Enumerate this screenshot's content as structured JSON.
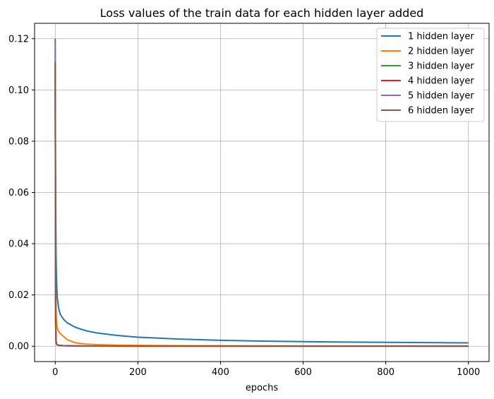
{
  "chart_data": {
    "type": "line",
    "title": "Loss values of the train data for each hidden layer added",
    "xlabel": "epochs",
    "ylabel": "",
    "xlim": [
      -50,
      1050
    ],
    "ylim": [
      -0.006,
      0.126
    ],
    "xticks": [
      0,
      200,
      400,
      600,
      800,
      1000
    ],
    "yticks": [
      0.0,
      0.02,
      0.04,
      0.06,
      0.08,
      0.1,
      0.12
    ],
    "ytick_labels": [
      "0.00",
      "0.02",
      "0.04",
      "0.06",
      "0.08",
      "0.10",
      "0.12"
    ],
    "grid": true,
    "legend_position": "top-right",
    "series": [
      {
        "name": "1 hidden layer",
        "color": "#1f77b4",
        "x": [
          0,
          1,
          2,
          3,
          5,
          8,
          12,
          20,
          30,
          50,
          75,
          100,
          150,
          200,
          300,
          400,
          500,
          600,
          700,
          800,
          900,
          1000
        ],
        "y": [
          0.105,
          0.06,
          0.035,
          0.026,
          0.019,
          0.015,
          0.0125,
          0.0105,
          0.009,
          0.0073,
          0.006,
          0.0052,
          0.0042,
          0.0035,
          0.0028,
          0.0023,
          0.002,
          0.0018,
          0.0016,
          0.0015,
          0.0014,
          0.0013
        ]
      },
      {
        "name": "2 hidden layer",
        "color": "#ff7f0e",
        "x": [
          0,
          1,
          2,
          3,
          5,
          8,
          12,
          20,
          30,
          50,
          75,
          100,
          150,
          200,
          300,
          400,
          600,
          800,
          1000
        ],
        "y": [
          0.1,
          0.03,
          0.014,
          0.009,
          0.007,
          0.0058,
          0.005,
          0.0038,
          0.0025,
          0.0013,
          0.0008,
          0.0006,
          0.0004,
          0.0003,
          0.0002,
          0.00015,
          0.0001,
          0.0001,
          0.0001
        ]
      },
      {
        "name": "3 hidden layer",
        "color": "#2ca02c",
        "x": [
          0,
          1,
          2,
          3,
          5,
          10,
          20,
          50,
          100,
          200,
          400,
          600,
          800,
          1000
        ],
        "y": [
          0.12,
          0.01,
          0.002,
          0.0008,
          0.0005,
          0.0003,
          0.0002,
          0.0001,
          5e-05,
          3e-05,
          2e-05,
          2e-05,
          2e-05,
          2e-05
        ]
      },
      {
        "name": "4 hidden layer",
        "color": "#d62728",
        "x": [
          0,
          1,
          2,
          3,
          5,
          10,
          20,
          50,
          100,
          200,
          400,
          600,
          800,
          1000
        ],
        "y": [
          0.11,
          0.009,
          0.002,
          0.0008,
          0.0005,
          0.0003,
          0.0002,
          0.0001,
          5e-05,
          3e-05,
          2e-05,
          2e-05,
          2e-05,
          2e-05
        ]
      },
      {
        "name": "5 hidden layer",
        "color": "#9467bd",
        "x": [
          0,
          1,
          2,
          3,
          5,
          10,
          20,
          50,
          100,
          200,
          400,
          600,
          800,
          1000
        ],
        "y": [
          0.118,
          0.01,
          0.002,
          0.0008,
          0.0005,
          0.0003,
          0.0002,
          0.0001,
          5e-05,
          3e-05,
          2e-05,
          2e-05,
          2e-05,
          2e-05
        ]
      },
      {
        "name": "6 hidden layer",
        "color": "#8c564b",
        "x": [
          0,
          1,
          2,
          3,
          5,
          10,
          20,
          50,
          100,
          200,
          400,
          600,
          800,
          1000
        ],
        "y": [
          0.111,
          0.009,
          0.002,
          0.0008,
          0.0005,
          0.0003,
          0.0002,
          0.0001,
          5e-05,
          3e-05,
          2e-05,
          2e-05,
          2e-05,
          2e-05
        ]
      }
    ]
  }
}
